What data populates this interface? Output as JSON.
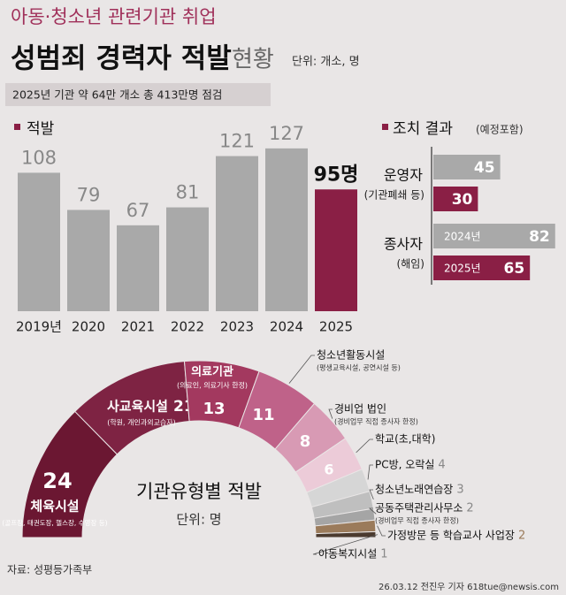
{
  "header": {
    "kicker": "아동·청소년 관련기관 취업",
    "title": "성범죄 경력자 적발",
    "title2": "현황",
    "unit": "단위: 개소, 명",
    "note": "2025년 기관 약 64만 개소 총 413만명 점검"
  },
  "chart_data": [
    {
      "type": "bar",
      "title": "적발",
      "categories": [
        "2019년",
        "2020",
        "2021",
        "2022",
        "2023",
        "2024",
        "2025"
      ],
      "values": [
        108,
        79,
        67,
        81,
        121,
        127,
        95
      ],
      "value_labels": [
        "108",
        "79",
        "67",
        "81",
        "121",
        "127",
        "95명"
      ],
      "colors": [
        "#a9a9a9",
        "#a9a9a9",
        "#a9a9a9",
        "#a9a9a9",
        "#a9a9a9",
        "#a9a9a9",
        "#8a1f45"
      ]
    },
    {
      "type": "hbar",
      "title": "조치 결과",
      "subtitle": "(예정포함)",
      "categories": [
        "운영자",
        "종사자"
      ],
      "details": [
        "(기관폐쇄 등)",
        "(해임)"
      ],
      "series": [
        {
          "name": "2024년",
          "color": "#a9a9a9",
          "values": [
            45,
            82
          ]
        },
        {
          "name": "2025년",
          "color": "#8a1f45",
          "values": [
            30,
            65
          ]
        }
      ]
    },
    {
      "type": "pie",
      "title": "기관유형별 적발",
      "subtitle": "단위: 명",
      "categories": [
        "체육시설",
        "사교육시설",
        "의료기관",
        "청소년활동시설",
        "경비업 법인",
        "학교(초,대학)",
        "PC방, 오락실",
        "청소년노래연습장",
        "공동주택관리사무소",
        "가정방문 등 학습교사 사업장",
        "아동복지시설"
      ],
      "details": [
        "(골프장, 태권도장, 헬스장, 수영장 등)",
        "(학원, 개인과외교습자)",
        "(의료인, 의료기사 한정)",
        "(평생교육시설, 공연시설 등)",
        "(경비업무 직접 종사자 한정)",
        null,
        null,
        null,
        "(경비업무 직접 종사자 한정)",
        null,
        null
      ],
      "values": [
        24,
        21,
        13,
        11,
        8,
        6,
        4,
        3,
        2,
        2,
        1
      ],
      "colors": [
        "#6b1732",
        "#7e2343",
        "#a3395f",
        "#bf6289",
        "#d89ab4",
        "#eccbd8",
        "#d6d6d6",
        "#bfbfbf",
        "#a5a5a5",
        "#9b7b5b",
        "#4b3a2e"
      ]
    }
  ],
  "footer": {
    "source": "자료: 성평등가족부",
    "credit": "26.03.12 전진우 기자 618tue@newsis.com"
  }
}
